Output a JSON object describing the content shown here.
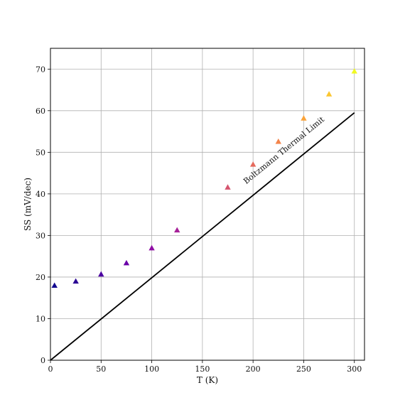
{
  "chart_data": {
    "type": "scatter",
    "title": "",
    "xlabel": "T (K)",
    "ylabel": "SS (mV/dec)",
    "xlim": [
      0,
      310
    ],
    "ylim": [
      0,
      75
    ],
    "xticks": [
      0,
      50,
      100,
      150,
      200,
      250,
      300
    ],
    "yticks": [
      0,
      10,
      20,
      30,
      40,
      50,
      60,
      70
    ],
    "grid": true,
    "legend": "none",
    "points": [
      {
        "x": 4,
        "y": 18.0,
        "color": "#12068f"
      },
      {
        "x": 25,
        "y": 19.0,
        "color": "#2b0594"
      },
      {
        "x": 50,
        "y": 20.7,
        "color": "#4c02a1"
      },
      {
        "x": 75,
        "y": 23.4,
        "color": "#6a00a8"
      },
      {
        "x": 100,
        "y": 27.0,
        "color": "#8f0da4"
      },
      {
        "x": 125,
        "y": 31.3,
        "color": "#a62098"
      },
      {
        "x": 175,
        "y": 41.6,
        "color": "#d5546e"
      },
      {
        "x": 200,
        "y": 47.1,
        "color": "#e56a5d"
      },
      {
        "x": 225,
        "y": 52.6,
        "color": "#f3844b"
      },
      {
        "x": 250,
        "y": 58.2,
        "color": "#faa33a"
      },
      {
        "x": 275,
        "y": 64.0,
        "color": "#fbc630"
      },
      {
        "x": 300,
        "y": 69.5,
        "color": "#f0f921"
      }
    ],
    "reference_line": {
      "label": "Boltzmann Thermal Limit",
      "x": [
        0,
        300
      ],
      "y": [
        0,
        59.5
      ],
      "color": "#000000"
    }
  }
}
